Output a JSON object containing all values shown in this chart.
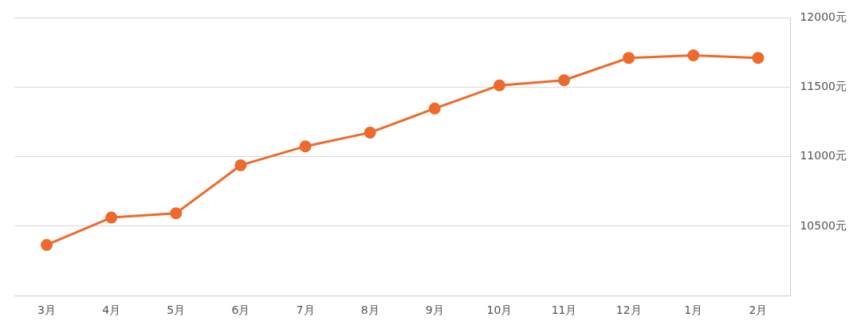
{
  "chart_data": {
    "type": "line",
    "categories": [
      "3月",
      "4月",
      "5月",
      "6月",
      "7月",
      "8月",
      "9月",
      "10月",
      "11月",
      "12月",
      "1月",
      "2月"
    ],
    "series": [
      {
        "color": "#ee6a2c",
        "values": [
          10365,
          10562,
          10593,
          10938,
          11074,
          11173,
          11346,
          11512,
          11549,
          11710,
          11728,
          11710
        ]
      }
    ],
    "ylim": [
      10000,
      12000
    ],
    "yticks": [
      {
        "value": 10500,
        "label": "10500元"
      },
      {
        "value": 11000,
        "label": "11000元"
      },
      {
        "value": 11500,
        "label": "11500元"
      },
      {
        "value": 12000,
        "label": "12000元"
      }
    ],
    "grid": "y",
    "marker": "circle",
    "line_style": "solid",
    "legend": false
  }
}
